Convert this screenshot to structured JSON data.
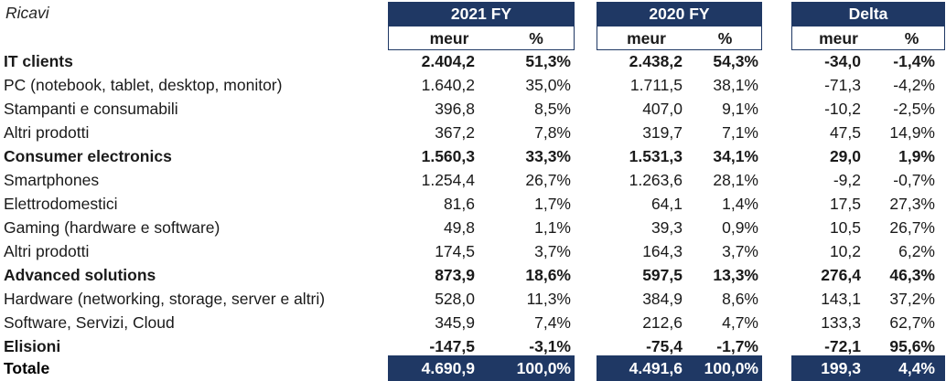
{
  "title": "Ricavi",
  "periods": [
    {
      "label": "2021 FY",
      "sub": [
        "meur",
        "%"
      ]
    },
    {
      "label": "2020 FY",
      "sub": [
        "meur",
        "%"
      ]
    },
    {
      "label": "Delta",
      "sub": [
        "meur",
        "%"
      ]
    }
  ],
  "rows": [
    {
      "label": "IT clients",
      "bold": true,
      "v": [
        "2.404,2",
        "51,3%",
        "2.438,2",
        "54,3%",
        "-34,0",
        "-1,4%"
      ]
    },
    {
      "label": "PC (notebook, tablet, desktop, monitor)",
      "bold": false,
      "v": [
        "1.640,2",
        "35,0%",
        "1.711,5",
        "38,1%",
        "-71,3",
        "-4,2%"
      ]
    },
    {
      "label": "Stampanti e consumabili",
      "bold": false,
      "v": [
        "396,8",
        "8,5%",
        "407,0",
        "9,1%",
        "-10,2",
        "-2,5%"
      ]
    },
    {
      "label": "Altri prodotti",
      "bold": false,
      "v": [
        "367,2",
        "7,8%",
        "319,7",
        "7,1%",
        "47,5",
        "14,9%"
      ]
    },
    {
      "label": "Consumer electronics",
      "bold": true,
      "v": [
        "1.560,3",
        "33,3%",
        "1.531,3",
        "34,1%",
        "29,0",
        "1,9%"
      ]
    },
    {
      "label": "Smartphones",
      "bold": false,
      "v": [
        "1.254,4",
        "26,7%",
        "1.263,6",
        "28,1%",
        "-9,2",
        "-0,7%"
      ]
    },
    {
      "label": "Elettrodomestici",
      "bold": false,
      "v": [
        "81,6",
        "1,7%",
        "64,1",
        "1,4%",
        "17,5",
        "27,3%"
      ]
    },
    {
      "label": "Gaming (hardware e software)",
      "bold": false,
      "v": [
        "49,8",
        "1,1%",
        "39,3",
        "0,9%",
        "10,5",
        "26,7%"
      ]
    },
    {
      "label": "Altri prodotti",
      "bold": false,
      "v": [
        "174,5",
        "3,7%",
        "164,3",
        "3,7%",
        "10,2",
        "6,2%"
      ]
    },
    {
      "label": "Advanced solutions",
      "bold": true,
      "v": [
        "873,9",
        "18,6%",
        "597,5",
        "13,3%",
        "276,4",
        "46,3%"
      ]
    },
    {
      "label": "Hardware (networking, storage, server e altri)",
      "bold": false,
      "v": [
        "528,0",
        "11,3%",
        "384,9",
        "8,6%",
        "143,1",
        "37,2%"
      ]
    },
    {
      "label": "Software, Servizi, Cloud",
      "bold": false,
      "v": [
        "345,9",
        "7,4%",
        "212,6",
        "4,7%",
        "133,3",
        "62,7%"
      ]
    },
    {
      "label": "Elisioni",
      "bold": true,
      "v": [
        "-147,5",
        "-3,1%",
        "-75,4",
        "-1,7%",
        "-72,1",
        "95,6%"
      ]
    }
  ],
  "total": {
    "label": "Totale",
    "v": [
      "4.690,9",
      "100,0%",
      "4.491,6",
      "100,0%",
      "199,3",
      "4,4%"
    ]
  }
}
